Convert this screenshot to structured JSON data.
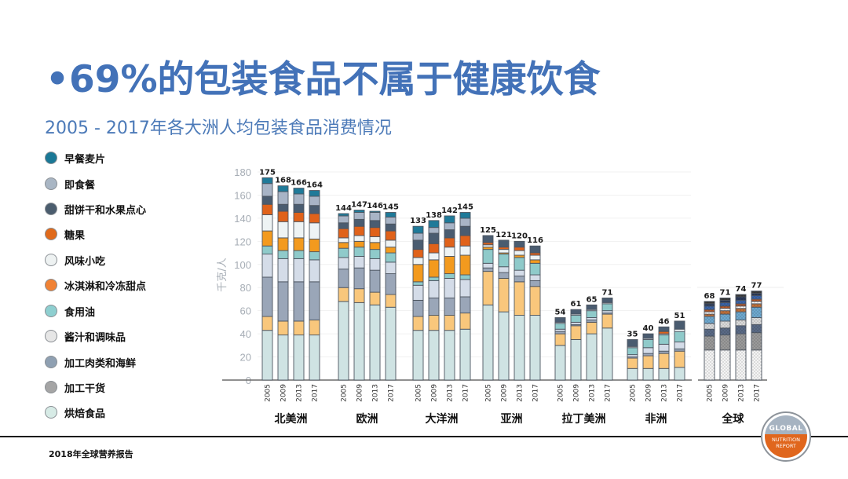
{
  "slide": {
    "title": "•69%的包装食品不属于健康饮食",
    "subtitle": "2005 - 2017年各大洲人均包装食品消费情况",
    "footer": "2018年全球营养报告",
    "logo": {
      "top": "GLOBAL",
      "line1": "NUTRITION",
      "line2": "REPORT"
    }
  },
  "legend": [
    {
      "label": "早餐麦片",
      "color": "#1A7896"
    },
    {
      "label": "即食餐",
      "color": "#A9B6C4"
    },
    {
      "label": "甜饼干和水果点心",
      "color": "#4B5D6E"
    },
    {
      "label": "糖果",
      "color": "#E06A1B"
    },
    {
      "label": "风味小吃",
      "color": "#EEF2F2"
    },
    {
      "label": "冰淇淋和冷冻甜点",
      "color": "#F08235"
    },
    {
      "label": "食用油",
      "color": "#8ECFD0"
    },
    {
      "label": "酱汁和调味品",
      "color": "#E6E6E6"
    },
    {
      "label": "加工肉类和海鲜",
      "color": "#8FA0B2"
    },
    {
      "label": "加工干货",
      "color": "#A5A5A5"
    },
    {
      "label": "烘焙食品",
      "color": "#D7EBE6"
    }
  ],
  "chart_data": {
    "type": "bar",
    "stacked": true,
    "title": "2005 - 2017年各大洲人均包装食品消费情况",
    "xlabel": "",
    "ylabel": "千克/人",
    "ylim": [
      0,
      180
    ],
    "yticks": [
      0,
      20,
      40,
      60,
      80,
      100,
      120,
      140,
      160,
      180
    ],
    "grid": true,
    "legend_position": "left",
    "groups": [
      {
        "name": "北美洲",
        "years": [
          "2005",
          "2009",
          "2013",
          "2017"
        ],
        "totals": [
          175,
          168,
          166,
          164
        ]
      },
      {
        "name": "欧洲",
        "years": [
          "2005",
          "2009",
          "2013",
          "2017"
        ],
        "totals": [
          144,
          147,
          146,
          145
        ]
      },
      {
        "name": "大洋洲",
        "years": [
          "2005",
          "2009",
          "2013",
          "2017"
        ],
        "totals": [
          133,
          138,
          142,
          145
        ]
      },
      {
        "name": "亚洲",
        "years": [
          "2005",
          "2009",
          "2013",
          "2017"
        ],
        "totals": [
          125,
          121,
          120,
          116
        ]
      },
      {
        "name": "拉丁美洲",
        "years": [
          "2005",
          "2009",
          "2013",
          "2017"
        ],
        "totals": [
          54,
          61,
          65,
          71
        ]
      },
      {
        "name": "非洲",
        "years": [
          "2005",
          "2009",
          "2013",
          "2017"
        ],
        "totals": [
          35,
          40,
          46,
          51
        ]
      },
      {
        "name": "全球",
        "years": [
          "2005",
          "2009",
          "2013",
          "2017"
        ],
        "totals": [
          68,
          71,
          74,
          77
        ],
        "style": "patterned"
      }
    ],
    "series_order": "bottom-to-top",
    "series": [
      {
        "name": "烘焙食品",
        "color": "#CFE3E3",
        "global_color": "#F4F4F4",
        "values": [
          43,
          39,
          39,
          39,
          68,
          67,
          65,
          63,
          43,
          43,
          43,
          44,
          65,
          59,
          56,
          56,
          30,
          35,
          40,
          45,
          10,
          10,
          10,
          11,
          26,
          26,
          26,
          26
        ]
      },
      {
        "name": "加工干货",
        "color": "#F9C77C",
        "global_color": "#9A9A9A",
        "values": [
          12,
          12,
          12,
          13,
          12,
          12,
          11,
          11,
          12,
          13,
          13,
          14,
          29,
          29,
          29,
          25,
          10,
          12,
          10,
          12,
          9,
          11,
          13,
          14,
          12,
          13,
          14,
          15
        ]
      },
      {
        "name": "加工肉类和海鲜",
        "color": "#9AA6B8",
        "global_color": "#5A6A86",
        "values": [
          34,
          34,
          34,
          33,
          16,
          18,
          19,
          18,
          14,
          15,
          15,
          14,
          3,
          5,
          5,
          5,
          2,
          1,
          2,
          1,
          1,
          2,
          2,
          2,
          6,
          6,
          7,
          7
        ]
      },
      {
        "name": "酱汁和调味品",
        "color": "#D4DCE8",
        "global_color": "#DADADA",
        "values": [
          20,
          20,
          20,
          19,
          10,
          10,
          10,
          10,
          13,
          15,
          17,
          15,
          4,
          5,
          5,
          5,
          2,
          2,
          2,
          2,
          2,
          5,
          6,
          6,
          5,
          6,
          5,
          6
        ]
      },
      {
        "name": "食用油",
        "color": "#8FCACA",
        "global_color": "#6EA8CE",
        "values": [
          7,
          7,
          7,
          7,
          8,
          8,
          8,
          8,
          3,
          3,
          4,
          4,
          12,
          11,
          11,
          10,
          5,
          6,
          6,
          6,
          6,
          7,
          8,
          9,
          6,
          6,
          7,
          9
        ]
      },
      {
        "name": "冰淇淋和冷冻甜点",
        "color": "#F39A1E",
        "global_color": "#C0703A",
        "values": [
          13,
          11,
          11,
          11,
          5,
          5,
          6,
          5,
          15,
          15,
          15,
          17,
          2,
          1,
          2,
          3,
          0,
          0,
          0,
          0,
          0,
          0,
          0,
          0,
          2,
          3,
          3,
          3
        ]
      },
      {
        "name": "风味小吃",
        "color": "#EEF3F4",
        "global_color": "#FFFFFF",
        "values": [
          14,
          14,
          14,
          14,
          4,
          5,
          5,
          6,
          6,
          6,
          8,
          8,
          2,
          3,
          4,
          4,
          1,
          1,
          1,
          1,
          1,
          1,
          1,
          2,
          2,
          2,
          2,
          2
        ]
      },
      {
        "name": "糖果",
        "color": "#E0621A",
        "global_color": "#B85A2A",
        "values": [
          9,
          9,
          8,
          8,
          8,
          8,
          8,
          8,
          7,
          8,
          8,
          9,
          2,
          2,
          3,
          2,
          0,
          0,
          0,
          0,
          0,
          0,
          2,
          0,
          2,
          2,
          2,
          2
        ]
      },
      {
        "name": "甜饼干和水果点心",
        "color": "#4A5C70",
        "global_color": "#3B64A8",
        "values": [
          7,
          6,
          7,
          7,
          5,
          6,
          6,
          6,
          8,
          9,
          7,
          8,
          6,
          6,
          5,
          6,
          4,
          4,
          4,
          4,
          6,
          4,
          4,
          7,
          3,
          3,
          3,
          3
        ]
      },
      {
        "name": "即食餐",
        "color": "#A8B4C6",
        "global_color": "#2B3A5A",
        "values": [
          11,
          11,
          9,
          8,
          6,
          6,
          7,
          6,
          6,
          5,
          6,
          7,
          0,
          0,
          0,
          0,
          0,
          0,
          0,
          0,
          0,
          0,
          0,
          0,
          2,
          2,
          3,
          2
        ]
      },
      {
        "name": "早餐麦片",
        "color": "#1F7A99",
        "global_color": "#3A3A3A",
        "values": [
          5,
          5,
          5,
          5,
          2,
          2,
          1,
          4,
          6,
          6,
          6,
          5,
          0,
          0,
          0,
          0,
          0,
          0,
          0,
          0,
          0,
          0,
          0,
          0,
          2,
          2,
          2,
          2
        ]
      }
    ]
  }
}
